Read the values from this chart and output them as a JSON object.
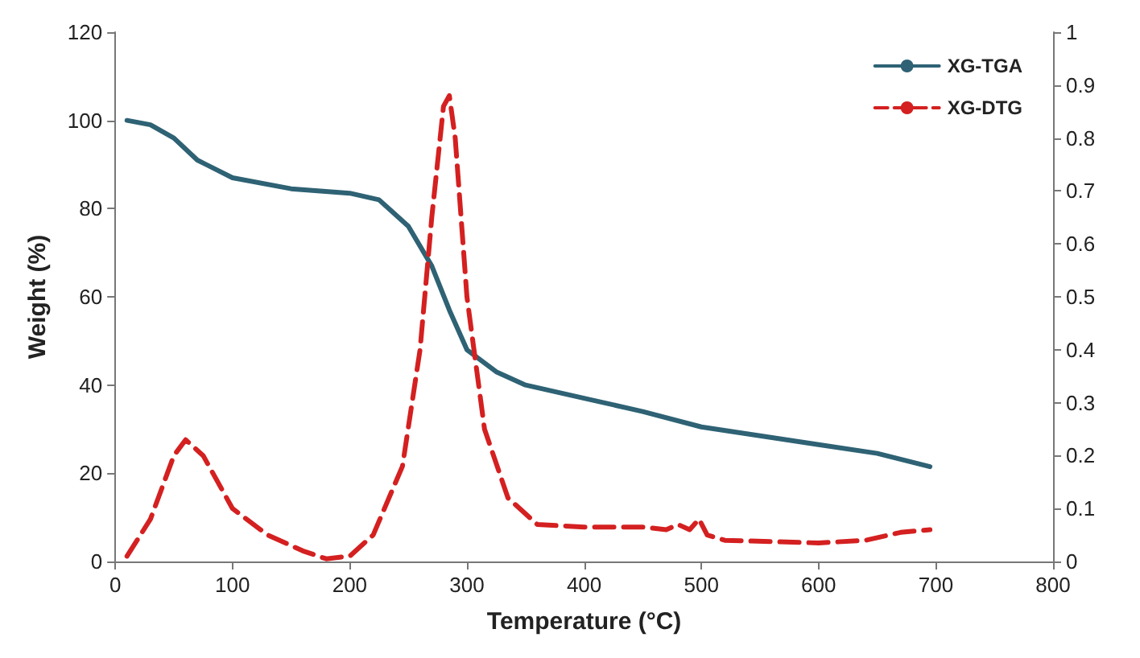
{
  "chart_data": {
    "type": "line",
    "xlabel": "Temperature (°C)",
    "ylabel": "Weight (%)",
    "xlim": [
      0,
      800
    ],
    "xticks": [
      0,
      100,
      200,
      300,
      400,
      500,
      600,
      700,
      800
    ],
    "ylim": [
      0,
      120
    ],
    "yticks": [
      0,
      20,
      40,
      60,
      80,
      100,
      120
    ],
    "y2lim": [
      0,
      1
    ],
    "y2ticks": [
      0,
      0.1,
      0.2,
      0.3,
      0.4,
      0.5,
      0.6,
      0.7,
      0.8,
      0.9,
      1
    ],
    "grid": false,
    "legend": "top right",
    "marker": "none",
    "series": [
      {
        "name": "XG-TGA",
        "color": "#2e6274",
        "line_style": "solid",
        "x": [
          10,
          30,
          50,
          70,
          100,
          150,
          200,
          225,
          250,
          270,
          285,
          300,
          325,
          350,
          400,
          450,
          500,
          550,
          600,
          650,
          695
        ],
        "values": [
          100,
          99,
          96,
          91,
          87,
          84.5,
          83.5,
          82,
          76,
          67,
          57,
          48,
          43,
          40,
          37,
          34,
          30.5,
          28.5,
          26.5,
          24.5,
          21.5
        ]
      },
      {
        "name": "XG-DTG",
        "color": "#d42020",
        "line_style": "dashed",
        "axis": "y2",
        "x": [
          10,
          30,
          50,
          60,
          75,
          100,
          130,
          160,
          180,
          200,
          220,
          245,
          260,
          270,
          280,
          285,
          290,
          300,
          315,
          335,
          360,
          400,
          450,
          470,
          480,
          490,
          498,
          505,
          520,
          600,
          640,
          670,
          695
        ],
        "values": [
          0.01,
          0.08,
          0.2,
          0.23,
          0.2,
          0.1,
          0.05,
          0.02,
          0.005,
          0.01,
          0.05,
          0.18,
          0.4,
          0.65,
          0.86,
          0.88,
          0.8,
          0.5,
          0.25,
          0.12,
          0.07,
          0.065,
          0.065,
          0.06,
          0.07,
          0.06,
          0.08,
          0.05,
          0.04,
          0.035,
          0.04,
          0.055,
          0.06
        ]
      }
    ]
  }
}
